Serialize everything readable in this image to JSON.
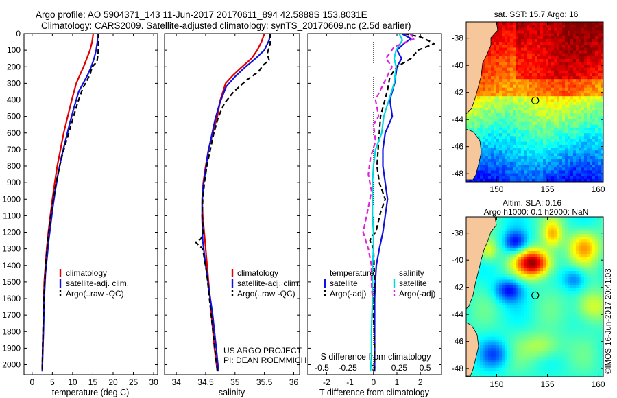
{
  "header": {
    "line1": "Argo profile: AO 5904371_143 11-Jun-2017 20170611_894 42.5888S 153.8031E",
    "line2": "Climatology: CARS2009. Satellite-adjusted climatology: synTS_20170609.nc (2.5d earlier)"
  },
  "colors": {
    "climatology": "#e00000",
    "satellite": "#1010e0",
    "argo": "#000000",
    "sat_salinity": "#00d8e0",
    "argo_salinity": "#e020e0"
  },
  "chart_data": [
    {
      "type": "line",
      "id": "temperature",
      "xlabel": "temperature (deg C)",
      "ylabel": "",
      "xlim": [
        -2,
        31
      ],
      "ylim": [
        2060,
        0
      ],
      "xticks": [
        "0",
        "5",
        "10",
        "15",
        "20",
        "25",
        "30"
      ],
      "xtick_values": [
        0,
        5,
        10,
        15,
        20,
        25,
        30
      ],
      "yticks": [
        "0",
        "100",
        "200",
        "300",
        "400",
        "500",
        "600",
        "700",
        "800",
        "900",
        "1000",
        "1100",
        "1200",
        "1300",
        "1400",
        "1500",
        "1600",
        "1700",
        "1800",
        "1900",
        "2000"
      ],
      "ytick_values": [
        0,
        100,
        200,
        300,
        400,
        500,
        600,
        700,
        800,
        900,
        1000,
        1100,
        1200,
        1300,
        1400,
        1500,
        1600,
        1700,
        1800,
        1900,
        2000
      ],
      "legend": [
        "climatology",
        "satellite-adj. clim.",
        "Argo(..raw -QC)"
      ],
      "series": [
        {
          "name": "climatology",
          "style": "solid",
          "color": "#e00000",
          "x": [
            15.1,
            14.8,
            14.3,
            13.5,
            12.7,
            11.8,
            10.9,
            9.8,
            8.8,
            7.8,
            7.0,
            6.2,
            5.6,
            5.0,
            4.5,
            4.0,
            3.6,
            3.3,
            3.0,
            2.8,
            2.6,
            2.5
          ],
          "y": [
            0,
            50,
            100,
            150,
            200,
            250,
            300,
            400,
            500,
            600,
            700,
            800,
            900,
            1000,
            1100,
            1200,
            1300,
            1400,
            1500,
            1700,
            1900,
            2040
          ]
        },
        {
          "name": "satellite-adj. clim.",
          "style": "solid",
          "color": "#1010e0",
          "x": [
            16.2,
            16.1,
            15.8,
            15.3,
            14.6,
            13.7,
            12.6,
            11.5,
            10.3,
            9.2,
            8.2,
            7.2,
            6.4,
            5.7,
            5.1,
            4.6,
            4.1,
            3.7,
            3.3,
            3.0,
            2.8,
            2.6,
            2.5
          ],
          "y": [
            0,
            50,
            100,
            150,
            200,
            250,
            300,
            350,
            450,
            550,
            650,
            750,
            850,
            950,
            1050,
            1150,
            1250,
            1350,
            1450,
            1600,
            1800,
            1950,
            2040
          ]
        },
        {
          "name": "Argo(..raw -QC)",
          "style": "dashed",
          "color": "#000000",
          "x": [
            16.4,
            16.4,
            16.3,
            16.0,
            14.8,
            14.4,
            13.6,
            12.5,
            11.2,
            10.0,
            8.8,
            7.6,
            6.6,
            5.8,
            5.1,
            4.5,
            4.0,
            3.6,
            3.3,
            3.0,
            2.8,
            2.6,
            2.5
          ],
          "y": [
            0,
            60,
            120,
            170,
            200,
            240,
            280,
            330,
            420,
            520,
            620,
            720,
            820,
            920,
            1020,
            1120,
            1220,
            1320,
            1420,
            1550,
            1700,
            1900,
            2040
          ]
        }
      ]
    },
    {
      "type": "line",
      "id": "salinity",
      "xlabel": "salinity",
      "xlim": [
        33.8,
        36.1
      ],
      "ylim": [
        2060,
        0
      ],
      "xticks": [
        "34",
        "34.5",
        "35",
        "35.5",
        "36"
      ],
      "xtick_values": [
        34,
        34.5,
        35,
        35.5,
        36
      ],
      "legend": [
        "climatology",
        "satellite-adj. clim.",
        "Argo(..raw -QC)"
      ],
      "annotation": [
        "US ARGO PROJECT",
        "PI: DEAN ROEMMICH"
      ],
      "series": [
        {
          "name": "climatology",
          "style": "solid",
          "color": "#e00000",
          "x": [
            35.5,
            35.45,
            35.38,
            35.28,
            35.12,
            34.97,
            34.84,
            34.75,
            34.7,
            34.62,
            34.55,
            34.5,
            34.46,
            34.44,
            34.45,
            34.5,
            34.55,
            34.6,
            34.65,
            34.7
          ],
          "y": [
            0,
            50,
            100,
            150,
            200,
            250,
            300,
            400,
            500,
            600,
            700,
            800,
            900,
            1000,
            1100,
            1300,
            1500,
            1700,
            1900,
            2040
          ]
        },
        {
          "name": "satellite-adj. clim.",
          "style": "solid",
          "color": "#1010e0",
          "x": [
            35.6,
            35.58,
            35.5,
            35.35,
            35.18,
            35.0,
            34.85,
            34.74,
            34.66,
            34.6,
            34.54,
            34.5,
            34.46,
            34.44,
            34.44,
            34.45,
            34.5,
            34.56,
            34.62,
            34.68,
            34.72
          ],
          "y": [
            0,
            40,
            100,
            150,
            200,
            260,
            320,
            420,
            520,
            620,
            720,
            820,
            920,
            1020,
            1120,
            1250,
            1400,
            1550,
            1700,
            1900,
            2040
          ]
        },
        {
          "name": "Argo(..raw -QC)",
          "style": "dashed",
          "color": "#000000",
          "x": [
            35.6,
            35.6,
            35.55,
            35.58,
            35.48,
            35.4,
            35.2,
            34.98,
            34.82,
            34.72,
            34.64,
            34.58,
            34.52,
            34.48,
            34.45,
            34.44,
            34.46,
            34.42,
            34.33,
            34.45,
            34.52,
            34.58,
            34.64,
            34.7
          ],
          "y": [
            0,
            60,
            120,
            160,
            190,
            230,
            280,
            350,
            420,
            500,
            600,
            700,
            800,
            900,
            1000,
            1100,
            1200,
            1240,
            1260,
            1300,
            1450,
            1650,
            1850,
            2040
          ]
        }
      ]
    },
    {
      "type": "line",
      "id": "difference",
      "xlabel": "T difference from climatology",
      "xlabel2": "S difference from climatology",
      "xlim": [
        -2.8,
        2.9
      ],
      "ylim": [
        2060,
        0
      ],
      "xticks": [
        "-2",
        "-1",
        "0",
        "1",
        "2"
      ],
      "xtick_values": [
        -2,
        -1,
        0,
        1,
        2
      ],
      "sticks": [
        "-0.5",
        "-0.25",
        "0",
        "0.25",
        "0.5"
      ],
      "stick_values": [
        -0.5,
        -0.25,
        0,
        0.25,
        0.5
      ],
      "legend_temperature": {
        "title": "temperature",
        "items": [
          "satellite",
          "Argo(-adj)"
        ]
      },
      "legend_salinity": {
        "title": "salinity",
        "items": [
          "satellite",
          "Argo(-adj)"
        ]
      },
      "series": [
        {
          "name": "T satellite",
          "style": "solid",
          "color": "#1010e0",
          "x": [
            1.2,
            1.6,
            1.3,
            1.0,
            1.2,
            1.0,
            0.9,
            0.7,
            0.8,
            0.5,
            0.4,
            0.4,
            0.5,
            0.6,
            0.5,
            0.4,
            0.25,
            0.12,
            0.08,
            0.05,
            0.05,
            0.05,
            0.05
          ],
          "y": [
            0,
            30,
            60,
            100,
            150,
            200,
            300,
            400,
            500,
            600,
            700,
            800,
            900,
            1000,
            1100,
            1200,
            1300,
            1400,
            1500,
            1600,
            1800,
            1950,
            2040
          ]
        },
        {
          "name": "T Argo(-adj)",
          "style": "dashed",
          "color": "#000000",
          "x": [
            1.3,
            2.0,
            2.6,
            1.9,
            1.6,
            1.0,
            0.7,
            0.6,
            0.45,
            0.3,
            0.25,
            0.2,
            0.15,
            0.25,
            0.5,
            0.3,
            0.2,
            0.1,
            -0.05,
            -0.15,
            0.0,
            0.05,
            0.0,
            0.05,
            0.03
          ],
          "y": [
            0,
            20,
            60,
            100,
            150,
            200,
            260,
            340,
            420,
            500,
            600,
            700,
            800,
            900,
            1000,
            1080,
            1140,
            1200,
            1220,
            1250,
            1300,
            1500,
            1700,
            1900,
            2040
          ]
        },
        {
          "name": "S satellite",
          "style": "solid",
          "color": "#00d8e0",
          "x": [
            0.25,
            0.28,
            0.22,
            0.2,
            0.22,
            0.2,
            0.15,
            0.1,
            0.08,
            0.02,
            0.0,
            -0.01,
            -0.01,
            -0.01,
            0.0,
            0.0,
            -0.01,
            -0.01,
            -0.02,
            -0.02,
            -0.03
          ],
          "y": [
            0,
            40,
            100,
            150,
            200,
            300,
            400,
            500,
            600,
            700,
            800,
            900,
            1000,
            1100,
            1200,
            1300,
            1400,
            1600,
            1800,
            1950,
            2040
          ]
        },
        {
          "name": "S Argo(-adj)",
          "style": "dashed",
          "color": "#e020e0",
          "x": [
            0.35,
            0.4,
            0.2,
            0.12,
            0.18,
            0.1,
            0.02,
            0.05,
            0.0,
            0.02,
            -0.03,
            -0.05,
            -0.02,
            -0.05,
            -0.1,
            -0.05,
            -0.02,
            -0.02,
            -0.01
          ],
          "y": [
            0,
            30,
            80,
            150,
            200,
            300,
            400,
            500,
            550,
            650,
            750,
            850,
            950,
            1050,
            1200,
            1300,
            1400,
            1500,
            1600
          ]
        }
      ]
    },
    {
      "type": "heatmap",
      "id": "sst_map",
      "title": "sat. SST: 15.7 Argo: 16",
      "xticks": [
        "150",
        "155",
        "160"
      ],
      "xtick_values": [
        150,
        155,
        160
      ],
      "yticks": [
        "-38",
        "-40",
        "-42",
        "-44",
        "-46",
        "-48"
      ],
      "ytick_values": [
        -38,
        -40,
        -42,
        -44,
        -46,
        -48
      ],
      "xlim": [
        147,
        160.5
      ],
      "ylim": [
        -48.6,
        -36.8
      ],
      "marker": {
        "lon": 153.8,
        "lat": -42.59
      }
    },
    {
      "type": "heatmap",
      "id": "sla_map",
      "title": "Altim. SLA: 0.16",
      "title2": "Argo h1000: 0.1 h2000: NaN",
      "xticks": [
        "150",
        "155",
        "160"
      ],
      "xtick_values": [
        150,
        155,
        160
      ],
      "yticks": [
        "-38",
        "-40",
        "-42",
        "-44",
        "-46",
        "-48"
      ],
      "ytick_values": [
        -38,
        -40,
        -42,
        -44,
        -46,
        -48
      ],
      "xlim": [
        147,
        160.5
      ],
      "ylim": [
        -48.6,
        -36.8
      ],
      "marker": {
        "lon": 153.8,
        "lat": -42.59
      }
    }
  ],
  "credit": "©IMOS 16-Jun-2017 20:41:03"
}
